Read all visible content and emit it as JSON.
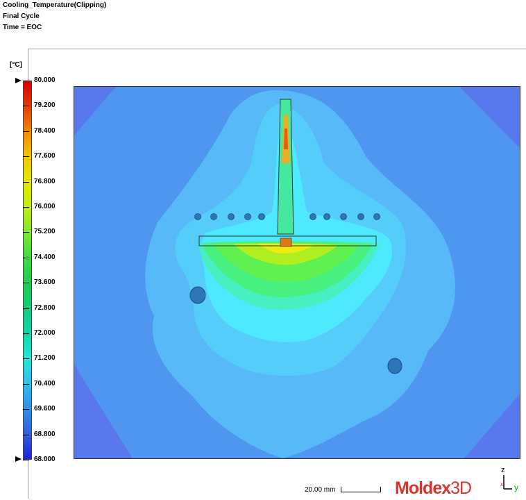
{
  "header": {
    "title": "Cooling_Temperature(Clipping)",
    "cycle": "Final Cycle",
    "time": "Time = EOC"
  },
  "colorbar": {
    "unit": "[°C]",
    "labels": [
      "80.000",
      "79.200",
      "78.400",
      "77.600",
      "76.800",
      "76.000",
      "75.200",
      "74.400",
      "73.600",
      "72.800",
      "72.000",
      "71.200",
      "70.400",
      "69.600",
      "68.800",
      "68.000"
    ],
    "max": 80.0,
    "min": 68.0,
    "colors": [
      "#d80000",
      "#e63c00",
      "#f08a00",
      "#f0c800",
      "#e8e800",
      "#c0ee10",
      "#80e830",
      "#40dc40",
      "#20cc50",
      "#10d07a",
      "#10d8a8",
      "#20e8d8",
      "#30c0ec",
      "#3090e8",
      "#3060e0",
      "#2020d8"
    ]
  },
  "scale": {
    "label": "20.00 mm"
  },
  "logo": {
    "main": "Moldex",
    "suffix": "3D"
  },
  "axes": {
    "z": "z",
    "y": "y",
    "x": "x"
  },
  "colors": {
    "background_field": "#4f96f0",
    "corner": "#5a78ee",
    "cool": "#56c3fa",
    "mid": "#4ee8ff",
    "warm_green": "#4cf070",
    "hot": "#f0c010"
  }
}
